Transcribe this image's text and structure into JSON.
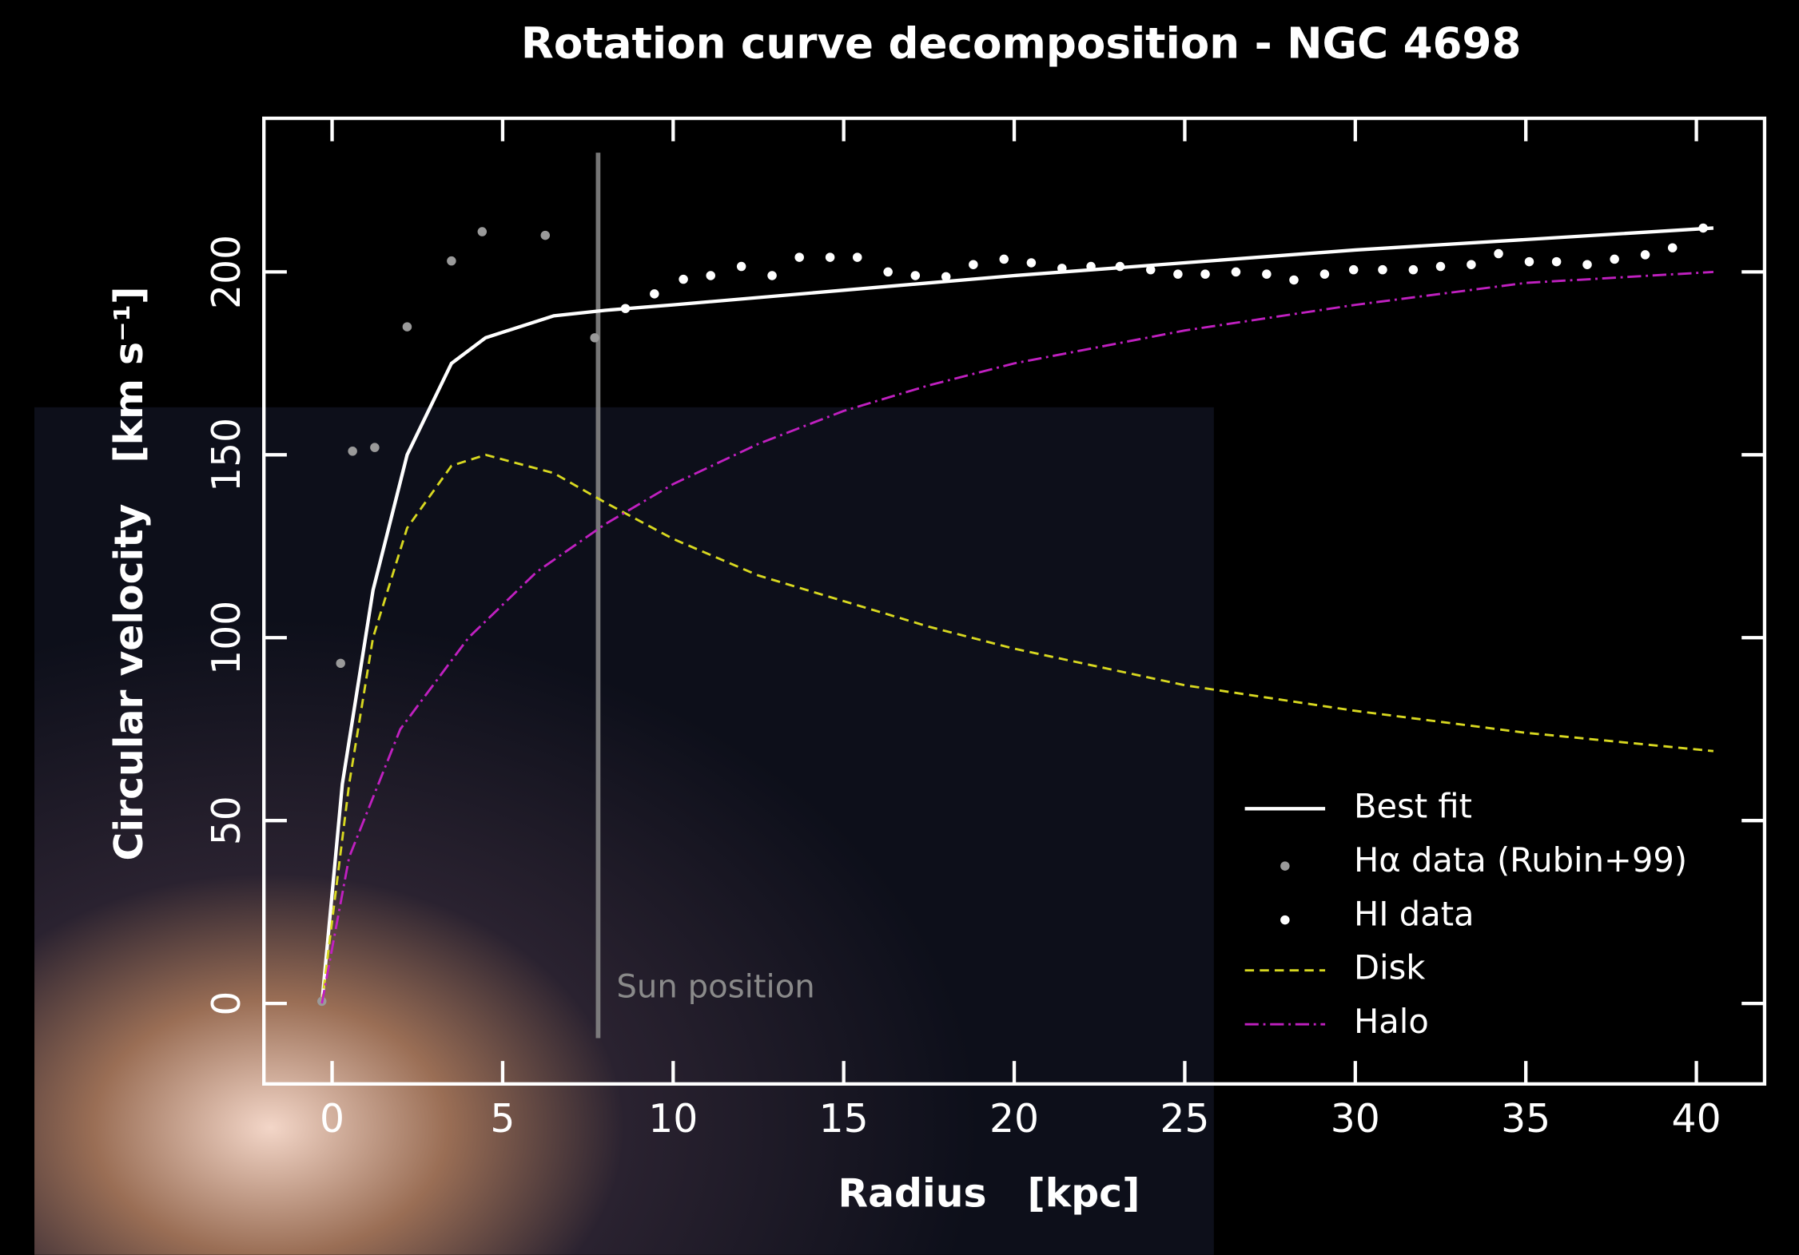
{
  "chart_data": {
    "type": "line",
    "title": "Rotation curve decomposition - NGC 4698",
    "xlabel": "Radius   [kpc]",
    "ylabel": "Circular velocity   [km s⁻¹]",
    "xlim": [
      -2,
      42
    ],
    "ylim": [
      -22,
      242
    ],
    "xticks": [
      0,
      5,
      10,
      15,
      20,
      25,
      30,
      35,
      40
    ],
    "yticks": [
      0,
      50,
      100,
      150,
      200
    ],
    "legend": "lower right",
    "annotation": {
      "x": 7.8,
      "label": "Sun position",
      "color": "#8a8a8a"
    },
    "series": [
      {
        "name": "Best fit",
        "kind": "line",
        "dash": "solid",
        "color": "#ffffff",
        "x": [
          -0.3,
          0.3,
          1.2,
          2.2,
          3.5,
          4.5,
          6.5,
          8,
          10,
          20,
          30,
          40.5
        ],
        "values": [
          0,
          60,
          113,
          150,
          175,
          182,
          188,
          189.5,
          191,
          199,
          206,
          212
        ]
      },
      {
        "name": "Hα data (Rubin+99)",
        "kind": "scatter",
        "color": "#9a9a9a",
        "x": [
          -0.3,
          0.25,
          0.6,
          1.25,
          2.2,
          3.5,
          4.4,
          6.25,
          7.7
        ],
        "values": [
          0.6,
          93,
          151,
          152,
          185,
          203,
          211,
          210,
          182
        ]
      },
      {
        "name": "HI data",
        "kind": "scatter",
        "color": "#ffffff",
        "x": [
          8.6,
          9.45,
          10.3,
          11.1,
          12.0,
          12.9,
          13.7,
          14.6,
          15.4,
          16.3,
          17.1,
          18.0,
          18.8,
          19.7,
          20.5,
          21.4,
          22.25,
          23.1,
          24.0,
          24.8,
          25.6,
          26.5,
          27.4,
          28.2,
          29.1,
          29.95,
          30.8,
          31.7,
          32.5,
          33.4,
          34.2,
          35.1,
          35.9,
          36.8,
          37.6,
          38.5,
          39.3,
          40.2
        ],
        "values": [
          190,
          194,
          198,
          199,
          201.5,
          199,
          204,
          204,
          204,
          200,
          199,
          198.7,
          202,
          203.5,
          202.5,
          201,
          201.5,
          201.5,
          200.6,
          199.4,
          199.4,
          200,
          199.4,
          197.8,
          199.4,
          200.6,
          200.6,
          200.6,
          201.5,
          202,
          205,
          202.8,
          202.8,
          202,
          203.5,
          204.7,
          206.6,
          212
        ]
      },
      {
        "name": "Disk",
        "kind": "line",
        "dash": "dashed",
        "color": "#d8d820",
        "x": [
          -0.3,
          0.5,
          1.2,
          2.2,
          3.5,
          4.5,
          6.5,
          8,
          10,
          12.5,
          15,
          17.5,
          20,
          25,
          30,
          35,
          40.5
        ],
        "values": [
          0,
          60,
          100,
          130,
          147,
          150,
          145,
          137,
          127,
          117,
          110,
          103,
          97,
          87,
          80,
          74,
          69
        ]
      },
      {
        "name": "Halo",
        "kind": "line",
        "dash": "dashdot",
        "color": "#c020c0",
        "x": [
          -0.3,
          0.5,
          2,
          4,
          6,
          8,
          10,
          12.5,
          15,
          17.5,
          20,
          25,
          30,
          35,
          40.5
        ],
        "values": [
          0,
          40,
          75,
          100,
          118,
          131,
          142,
          153,
          162,
          169,
          175,
          184,
          191,
          197,
          200
        ]
      }
    ]
  }
}
